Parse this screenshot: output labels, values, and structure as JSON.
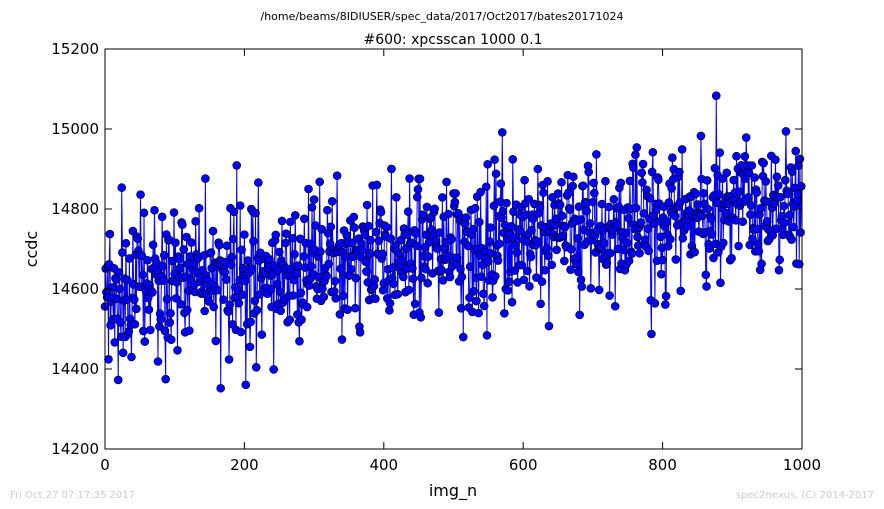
{
  "figure": {
    "suptitle": "/home/beams/8IDIUSER/spec_data/2017/Oct2017/bates20171024",
    "timestamp": "Fri Oct 27 07:17:35 2017",
    "credit": "spec2nexus, (C) 2014-2017"
  },
  "colors": {
    "series": "#0000ff",
    "marker_fill": "#0000ff",
    "footer_text": "#cccccc"
  },
  "chart_data": {
    "type": "line",
    "title": "#600: xpcsscan 1000 0.1",
    "xlabel": "img_n",
    "ylabel": "ccdc",
    "xlim": [
      0,
      1000
    ],
    "ylim": [
      14200,
      15200
    ],
    "xticks": [
      0,
      200,
      400,
      600,
      800,
      1000
    ],
    "yticks": [
      14200,
      14400,
      14600,
      14800,
      15000,
      15200
    ],
    "grid": false,
    "markers": "circle",
    "n_points": 1000,
    "x_start": 0,
    "x_step": 1,
    "trend": {
      "start": 14590,
      "end": 14820
    },
    "noise_sd": 90,
    "seed": 600
  }
}
